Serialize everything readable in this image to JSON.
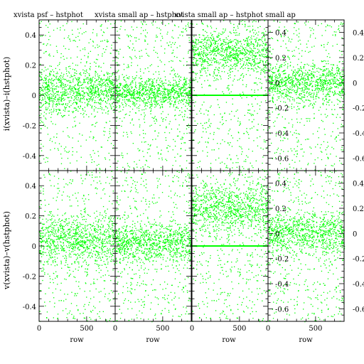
{
  "colors": {
    "points": "#00ff00",
    "axes": "#000000",
    "background": "#ffffff"
  },
  "panel_titles": [
    "xvista psf – hstphot",
    "xvista small ap – hstphot",
    "xvista small ap – hstphot small ap"
  ],
  "row_labels": [
    "i(xvista)–i(hstphot)",
    "v(xvista)–v(hstphot)"
  ],
  "chart_data": [
    {
      "type": "scatter",
      "row": 0,
      "col": 0,
      "xlim": [
        0,
        800
      ],
      "ylim": [
        -0.5,
        0.5
      ],
      "yticks": [
        "-0.4",
        "-0.2",
        "0",
        "0.2",
        "0.4"
      ],
      "y_center": 0.03,
      "y_spread": 0.07,
      "outlier_range": [
        -0.5,
        0.5
      ],
      "flat_line_y": null
    },
    {
      "type": "scatter",
      "row": 0,
      "col": 1,
      "xlim": [
        0,
        800
      ],
      "ylim": [
        -0.5,
        0.5
      ],
      "y_center": 0.02,
      "y_spread": 0.05,
      "outlier_range": [
        -0.5,
        0.5
      ],
      "flat_line_y": null
    },
    {
      "type": "scatter",
      "row": 0,
      "col": 2,
      "xlim": [
        0,
        800
      ],
      "ylim": [
        -0.5,
        0.5
      ],
      "y_center": 0.28,
      "y_spread": 0.07,
      "outlier_range": [
        -0.5,
        0.5
      ],
      "flat_line_y": 0.0
    },
    {
      "type": "scatter",
      "row": 0,
      "col": 3,
      "xlim": [
        0,
        800
      ],
      "ylim": [
        -0.7,
        0.5
      ],
      "yticks": [
        "-0.6",
        "-0.4",
        "-0.2",
        "0",
        "0.2",
        "0.4"
      ],
      "y_center": 0.0,
      "y_spread": 0.07,
      "outlier_range": [
        -0.7,
        0.5
      ],
      "flat_line_y": null
    },
    {
      "type": "scatter",
      "row": 1,
      "col": 0,
      "xlim": [
        0,
        800
      ],
      "ylim": [
        -0.5,
        0.5
      ],
      "yticks": [
        "-0.4",
        "-0.2",
        "0",
        "0.2",
        "0.4"
      ],
      "y_center": 0.04,
      "y_spread": 0.08,
      "outlier_range": [
        -0.5,
        0.5
      ],
      "flat_line_y": null
    },
    {
      "type": "scatter",
      "row": 1,
      "col": 1,
      "xlim": [
        0,
        800
      ],
      "ylim": [
        -0.5,
        0.5
      ],
      "y_center": 0.02,
      "y_spread": 0.06,
      "outlier_range": [
        -0.5,
        0.5
      ],
      "flat_line_y": null
    },
    {
      "type": "scatter",
      "row": 1,
      "col": 2,
      "xlim": [
        0,
        800
      ],
      "ylim": [
        -0.5,
        0.5
      ],
      "y_center": 0.25,
      "y_spread": 0.08,
      "outlier_range": [
        -0.5,
        0.5
      ],
      "flat_line_y": 0.0
    },
    {
      "type": "scatter",
      "row": 1,
      "col": 3,
      "xlim": [
        0,
        800
      ],
      "ylim": [
        -0.7,
        0.5
      ],
      "yticks": [
        "-0.6",
        "-0.4",
        "-0.2",
        "0",
        "0.2",
        "0.4"
      ],
      "y_center": 0.0,
      "y_spread": 0.08,
      "outlier_range": [
        -0.7,
        0.5
      ],
      "flat_line_y": null
    }
  ],
  "x_axis": {
    "label": "row",
    "ticks": [
      "0",
      "500"
    ]
  }
}
